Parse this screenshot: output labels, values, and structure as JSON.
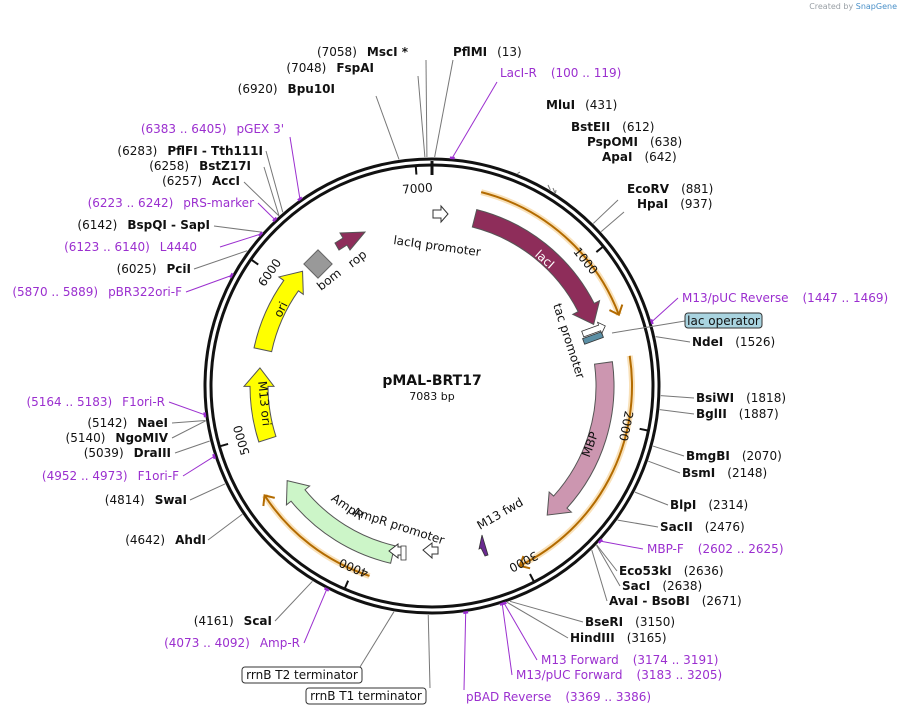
{
  "credit": {
    "prefix": "Created by",
    "brand": "SnapGene"
  },
  "plasmid": {
    "name": "pMAL-BRT17",
    "size_label": "7083 bp",
    "length": 7083
  },
  "ticks": [
    {
      "label": "1000",
      "pos": 1000
    },
    {
      "label": "2000",
      "pos": 2000
    },
    {
      "label": "3000",
      "pos": 3000
    },
    {
      "label": "4000",
      "pos": 4000
    },
    {
      "label": "5000",
      "pos": 5000
    },
    {
      "label": "6000",
      "pos": 6000
    },
    {
      "label": "7000",
      "pos": 7000
    }
  ],
  "features": [
    {
      "name": "lacI",
      "label": "lacI",
      "start": 280,
      "end": 1360,
      "color": "#8e2d5a",
      "arrowColor": "#8e2d5a",
      "label_inside": true
    },
    {
      "name": "MBP",
      "label": "MBP",
      "start": 1620,
      "end": 2720,
      "color": "#cc96b0",
      "label_inside": true
    },
    {
      "name": "AmpR",
      "label": "AmpR",
      "start": 3800,
      "end": 4660,
      "color": "#ccf5c8",
      "label_inside": false
    },
    {
      "name": "M13 ori",
      "label": "M13 ori",
      "start": 4960,
      "end": 5430,
      "color": "#ffff00",
      "label_inside": true
    },
    {
      "name": "ori",
      "label": "ori",
      "start": 5550,
      "end": 6130,
      "color": "#ffff00",
      "label_inside": true
    }
  ],
  "outer_arcs": [
    {
      "start": 280,
      "end": 1360
    },
    {
      "start": 1600,
      "end": 3030
    },
    {
      "start": 3900,
      "end": 4660
    }
  ],
  "small_labels": [
    {
      "text": "lacIq promoter",
      "key": "lacIq"
    },
    {
      "text": "tac promoter",
      "key": "tac"
    },
    {
      "text": "M13 fwd",
      "key": "m13fwd"
    },
    {
      "text": "AmpR promoter",
      "key": "amprprom"
    },
    {
      "text": "bom",
      "key": "bom"
    },
    {
      "text": "rop",
      "key": "rop"
    }
  ],
  "enzymes_right": [
    {
      "name": "PflMI",
      "pos": "(13)"
    },
    {
      "name": "MluI",
      "pos": "(431)"
    },
    {
      "name": "BstEII",
      "pos": "(612)"
    },
    {
      "name": "PspOMI",
      "pos": "(638)"
    },
    {
      "name": "ApaI",
      "pos": "(642)"
    },
    {
      "name": "EcoRV",
      "pos": "(881)"
    },
    {
      "name": "HpaI",
      "pos": "(937)"
    },
    {
      "name": "NdeI",
      "pos": "(1526)"
    },
    {
      "name": "BsiWI",
      "pos": "(1818)"
    },
    {
      "name": "BglII",
      "pos": "(1887)"
    },
    {
      "name": "BmgBI",
      "pos": "(2070)"
    },
    {
      "name": "BsmI",
      "pos": "(2148)"
    },
    {
      "name": "BlpI",
      "pos": "(2314)"
    },
    {
      "name": "SacII",
      "pos": "(2476)"
    },
    {
      "name": "Eco53kI",
      "pos": "(2636)"
    },
    {
      "name": "SacI",
      "pos": "(2638)"
    },
    {
      "name": "AvaI - BsoBI",
      "pos": "(2671)"
    },
    {
      "name": "BseRI",
      "pos": "(3150)"
    },
    {
      "name": "HindIII",
      "pos": "(3165)"
    }
  ],
  "enzymes_left": [
    {
      "name": "MscI *",
      "pos": "(7058)"
    },
    {
      "name": "FspAI",
      "pos": "(7048)"
    },
    {
      "name": "Bpu10I",
      "pos": "(6920)"
    },
    {
      "name": "PflFI - Tth111I",
      "pos": "(6283)"
    },
    {
      "name": "BstZ17I",
      "pos": "(6258)"
    },
    {
      "name": "AccI",
      "pos": "(6257)"
    },
    {
      "name": "BspQI - SapI",
      "pos": "(6142)"
    },
    {
      "name": "PciI",
      "pos": "(6025)"
    },
    {
      "name": "NaeI",
      "pos": "(5142)"
    },
    {
      "name": "NgoMIV",
      "pos": "(5140)"
    },
    {
      "name": "DraIII",
      "pos": "(5039)"
    },
    {
      "name": "SwaI",
      "pos": "(4814)"
    },
    {
      "name": "AhdI",
      "pos": "(4642)"
    },
    {
      "name": "ScaI",
      "pos": "(4161)"
    }
  ],
  "primers": [
    {
      "name": "LacI-R",
      "range": "(100 .. 119)"
    },
    {
      "name": "M13/pUC Reverse",
      "range": "(1447 .. 1469)"
    },
    {
      "name": "MBP-F",
      "range": "(2602 .. 2625)"
    },
    {
      "name": "M13 Forward",
      "range": "(3174 .. 3191)"
    },
    {
      "name": "M13/pUC Forward",
      "range": "(3183 .. 3205)"
    },
    {
      "name": "pBAD Reverse",
      "range": "(3369 .. 3386)"
    },
    {
      "name": "pGEX 3'",
      "range": "(6383 .. 6405)"
    },
    {
      "name": "pRS-marker",
      "range": "(6223 .. 6242)"
    },
    {
      "name": "L4440",
      "range": "(6123 .. 6140)"
    },
    {
      "name": "pBR322ori-F",
      "range": "(5870 .. 5889)"
    },
    {
      "name": "F1ori-R",
      "range": "(5164 .. 5183)"
    },
    {
      "name": "F1ori-F",
      "range": "(4952 .. 4973)"
    },
    {
      "name": "Amp-R",
      "range": "(4073 .. 4092)"
    }
  ],
  "boxed_labels": [
    {
      "text": "lac operator",
      "fill": "#a9d4e0"
    },
    {
      "text": "rrnB T2 terminator",
      "fill": "#ffffff"
    },
    {
      "text": "rrnB T1 terminator",
      "fill": "#ffffff"
    }
  ],
  "colors": {
    "primer": "#9b2fcf",
    "outer_arc": "#f5a623",
    "line": "#666666"
  }
}
